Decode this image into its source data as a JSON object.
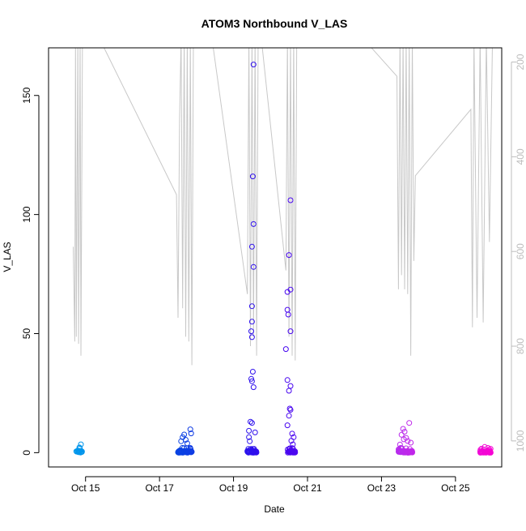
{
  "chart_data": {
    "type": "scatter",
    "title": "ATOM3 Northbound V_LAS",
    "xlabel": "Date",
    "ylabel": "V_LAS",
    "xlim": [
      "2013-10-14T00:00",
      "2013-10-26T06:00"
    ],
    "ylim": [
      -6,
      170
    ],
    "y2lim": [
      170,
      1055
    ],
    "y2_reversed": true,
    "x_ticks": [
      {
        "date": "2013-10-15",
        "label": "Oct 15"
      },
      {
        "date": "2013-10-17",
        "label": "Oct 17"
      },
      {
        "date": "2013-10-19",
        "label": "Oct 19"
      },
      {
        "date": "2013-10-21",
        "label": "Oct 21"
      },
      {
        "date": "2013-10-23",
        "label": "Oct 23"
      },
      {
        "date": "2013-10-25",
        "label": "Oct 25"
      }
    ],
    "y_ticks": [
      0,
      50,
      100,
      150
    ],
    "y2_ticks": [
      200,
      400,
      600,
      800,
      1000
    ],
    "grid": false,
    "series": [
      {
        "kind": "points",
        "marker": "open-circle",
        "color_gradient": [
          "#00b0f0",
          "#0050e0",
          "#3a00f0",
          "#b030f0",
          "#ff00d0"
        ],
        "clusters": [
          {
            "start": "2013-10-14T18:00",
            "end": "2013-10-14T22:00",
            "n": 22,
            "outliers": [
              [
                "2013-10-14T21:00",
                3.5
              ],
              [
                "2013-10-14T20:00",
                2.2
              ]
            ]
          },
          {
            "start": "2013-10-17T12:00",
            "end": "2013-10-17T21:00",
            "n": 70,
            "outliers": [
              [
                "2013-10-17T20:00",
                9.8
              ],
              [
                "2013-10-17T20:30",
                8.1
              ],
              [
                "2013-10-17T16:00",
                7.6
              ],
              [
                "2013-10-17T15:00",
                6.5
              ],
              [
                "2013-10-17T17:00",
                5.4
              ],
              [
                "2013-10-17T14:00",
                4.8
              ],
              [
                "2013-10-17T18:00",
                3.9
              ]
            ]
          },
          {
            "start": "2013-10-19T09:00",
            "end": "2013-10-19T15:00",
            "n": 55,
            "outliers": [
              [
                "2013-10-19T13:00",
                163
              ],
              [
                "2013-10-19T12:30",
                116
              ],
              [
                "2013-10-19T13:00",
                96
              ],
              [
                "2013-10-19T12:00",
                86.5
              ],
              [
                "2013-10-19T13:00",
                78
              ],
              [
                "2013-10-19T12:00",
                61.5
              ],
              [
                "2013-10-19T12:00",
                55
              ],
              [
                "2013-10-19T11:30",
                51
              ],
              [
                "2013-10-19T12:00",
                48.5
              ],
              [
                "2013-10-19T12:30",
                34
              ],
              [
                "2013-10-19T11:30",
                31
              ],
              [
                "2013-10-19T12:00",
                30
              ],
              [
                "2013-10-19T13:00",
                27.5
              ],
              [
                "2013-10-19T11:00",
                13
              ],
              [
                "2013-10-19T12:00",
                12.5
              ],
              [
                "2013-10-19T10:00",
                9.2
              ],
              [
                "2013-10-19T14:00",
                8.5
              ],
              [
                "2013-10-19T10:00",
                6.5
              ],
              [
                "2013-10-19T10:30",
                4.8
              ]
            ]
          },
          {
            "start": "2013-10-20T11:00",
            "end": "2013-10-20T16:00",
            "n": 60,
            "outliers": [
              [
                "2013-10-20T13:00",
                106
              ],
              [
                "2013-10-20T12:00",
                83
              ],
              [
                "2013-10-20T13:00",
                68.5
              ],
              [
                "2013-10-20T11:00",
                67.5
              ],
              [
                "2013-10-20T11:00",
                60
              ],
              [
                "2013-10-20T11:30",
                58
              ],
              [
                "2013-10-20T13:00",
                51
              ],
              [
                "2013-10-20T10:00",
                43.5
              ],
              [
                "2013-10-20T11:00",
                30.5
              ],
              [
                "2013-10-20T13:00",
                28
              ],
              [
                "2013-10-20T12:00",
                26
              ],
              [
                "2013-10-20T12:30",
                18.5
              ],
              [
                "2013-10-20T13:00",
                18
              ],
              [
                "2013-10-20T12:00",
                15.5
              ],
              [
                "2013-10-20T11:00",
                11.5
              ],
              [
                "2013-10-20T14:00",
                8
              ],
              [
                "2013-10-20T15:00",
                6.5
              ],
              [
                "2013-10-20T13:30",
                5
              ],
              [
                "2013-10-20T14:30",
                3.5
              ]
            ]
          },
          {
            "start": "2013-10-23T11:00",
            "end": "2013-10-23T20:00",
            "n": 65,
            "outliers": [
              [
                "2013-10-23T18:00",
                12.5
              ],
              [
                "2013-10-23T14:00",
                10
              ],
              [
                "2013-10-23T15:00",
                8.8
              ],
              [
                "2013-10-23T13:00",
                7.5
              ],
              [
                "2013-10-23T16:00",
                6.2
              ],
              [
                "2013-10-23T14:30",
                5.6
              ],
              [
                "2013-10-23T17:00",
                4.9
              ],
              [
                "2013-10-23T19:00",
                4.2
              ],
              [
                "2013-10-23T12:00",
                3.4
              ]
            ]
          },
          {
            "start": "2013-10-25T16:00",
            "end": "2013-10-25T23:00",
            "n": 40,
            "outliers": [
              [
                "2013-10-25T19:00",
                2.4
              ],
              [
                "2013-10-25T21:00",
                2.0
              ],
              [
                "2013-10-25T17:00",
                1.7
              ],
              [
                "2013-10-25T22:00",
                1.3
              ]
            ]
          }
        ]
      },
      {
        "kind": "line",
        "axis": "right",
        "color": "#c8c8c8",
        "points": [
          [
            "2013-10-14T16:00",
            590
          ],
          [
            "2013-10-14T17:00",
            790
          ],
          [
            "2013-10-14T17:30",
            150
          ],
          [
            "2013-10-14T18:00",
            780
          ],
          [
            "2013-10-14T19:00",
            150
          ],
          [
            "2013-10-14T19:30",
            795
          ],
          [
            "2013-10-14T20:30",
            150
          ],
          [
            "2013-10-14T21:00",
            820
          ],
          [
            "2013-10-14T22:00",
            150
          ],
          [
            "2013-10-14T23:00",
            150
          ],
          [
            "2013-10-15T12:00",
            170
          ],
          [
            "2013-10-17T11:00",
            480
          ],
          [
            "2013-10-17T12:00",
            740
          ],
          [
            "2013-10-17T13:00",
            320
          ],
          [
            "2013-10-17T14:00",
            150
          ],
          [
            "2013-10-17T15:00",
            720
          ],
          [
            "2013-10-17T16:00",
            150
          ],
          [
            "2013-10-17T17:00",
            780
          ],
          [
            "2013-10-17T18:00",
            150
          ],
          [
            "2013-10-17T19:00",
            790
          ],
          [
            "2013-10-17T20:00",
            150
          ],
          [
            "2013-10-17T21:00",
            840
          ],
          [
            "2013-10-17T22:00",
            150
          ],
          [
            "2013-10-18T10:00",
            150
          ],
          [
            "2013-10-19T09:00",
            690
          ],
          [
            "2013-10-19T10:00",
            150
          ],
          [
            "2013-10-19T11:00",
            800
          ],
          [
            "2013-10-19T12:00",
            150
          ],
          [
            "2013-10-19T13:00",
            780
          ],
          [
            "2013-10-19T14:00",
            150
          ],
          [
            "2013-10-19T15:00",
            820
          ],
          [
            "2013-10-19T16:00",
            150
          ],
          [
            "2013-10-19T18:00",
            150
          ],
          [
            "2013-10-20T10:00",
            640
          ],
          [
            "2013-10-20T11:00",
            150
          ],
          [
            "2013-10-20T12:00",
            780
          ],
          [
            "2013-10-20T13:00",
            150
          ],
          [
            "2013-10-20T14:00",
            820
          ],
          [
            "2013-10-20T15:00",
            150
          ],
          [
            "2013-10-20T16:00",
            830
          ],
          [
            "2013-10-20T17:00",
            150
          ],
          [
            "2013-10-21T12:00",
            150
          ],
          [
            "2013-10-22T12:00",
            150
          ],
          [
            "2013-10-23T10:00",
            230
          ],
          [
            "2013-10-23T11:00",
            680
          ],
          [
            "2013-10-23T12:00",
            150
          ],
          [
            "2013-10-23T13:00",
            650
          ],
          [
            "2013-10-23T14:00",
            150
          ],
          [
            "2013-10-23T15:00",
            680
          ],
          [
            "2013-10-23T16:00",
            150
          ],
          [
            "2013-10-23T17:00",
            690
          ],
          [
            "2013-10-23T18:00",
            150
          ],
          [
            "2013-10-23T19:00",
            820
          ],
          [
            "2013-10-23T20:00",
            150
          ],
          [
            "2013-10-23T21:00",
            620
          ],
          [
            "2013-10-23T22:00",
            440
          ],
          [
            "2013-10-25T10:00",
            300
          ],
          [
            "2013-10-25T11:00",
            760
          ],
          [
            "2013-10-25T12:00",
            150
          ],
          [
            "2013-10-25T14:00",
            740
          ],
          [
            "2013-10-25T16:00",
            150
          ],
          [
            "2013-10-25T18:00",
            750
          ],
          [
            "2013-10-25T20:00",
            150
          ],
          [
            "2013-10-25T22:00",
            580
          ],
          [
            "2013-10-26T00:00",
            150
          ]
        ]
      }
    ]
  }
}
